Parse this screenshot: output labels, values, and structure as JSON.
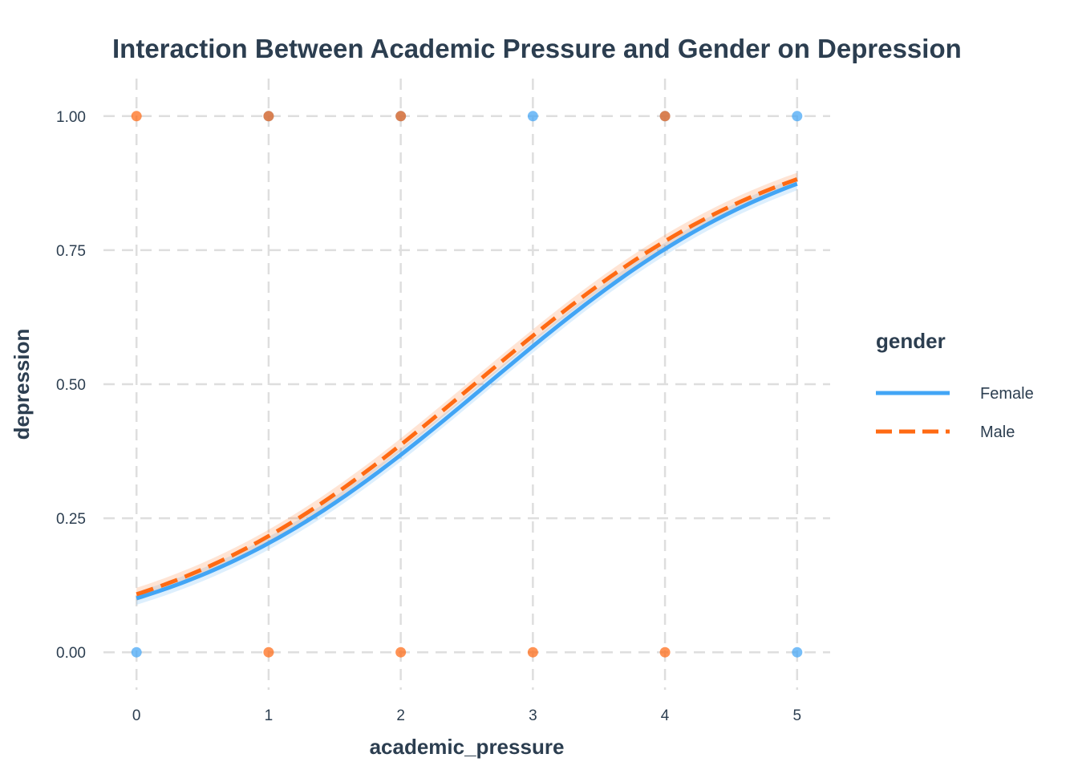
{
  "chart_data": {
    "type": "line",
    "title": "Interaction Between Academic Pressure and Gender on Depression",
    "xlabel": "academic_pressure",
    "ylabel": "depression",
    "xlim": [
      -0.25,
      5.25
    ],
    "ylim": [
      -0.07,
      1.07
    ],
    "x_ticks": [
      0,
      1,
      2,
      3,
      4,
      5
    ],
    "x_tick_labels": [
      "0",
      "1",
      "2",
      "3",
      "4",
      "5"
    ],
    "y_ticks": [
      0,
      0.25,
      0.5,
      0.75,
      1
    ],
    "y_tick_labels": [
      "0.00",
      "0.25",
      "0.50",
      "0.75",
      "1.00"
    ],
    "grid": true,
    "legend": {
      "title": "gender",
      "placement": "right"
    },
    "series": [
      {
        "name": "Female",
        "color": "#42a5f5",
        "line_style": "solid",
        "logistic": {
          "intercept": -2.19,
          "slope": 0.825
        },
        "points": [
          {
            "x": 0,
            "y": 0
          },
          {
            "x": 1,
            "y": 1
          },
          {
            "x": 2,
            "y": 1
          },
          {
            "x": 3,
            "y": 1
          },
          {
            "x": 4,
            "y": 1
          },
          {
            "x": 5,
            "y": 1
          },
          {
            "x": 5,
            "y": 0
          }
        ]
      },
      {
        "name": "Male",
        "color": "#ff6a13",
        "line_style": "dashed",
        "logistic": {
          "intercept": -2.11,
          "slope": 0.825
        },
        "points": [
          {
            "x": 0,
            "y": 1
          },
          {
            "x": 1,
            "y": 0
          },
          {
            "x": 2,
            "y": 0
          },
          {
            "x": 3,
            "y": 0
          },
          {
            "x": 4,
            "y": 0
          },
          {
            "x": 4,
            "y": 1
          },
          {
            "x": 1,
            "y": 1
          },
          {
            "x": 2,
            "y": 1
          }
        ]
      }
    ]
  }
}
